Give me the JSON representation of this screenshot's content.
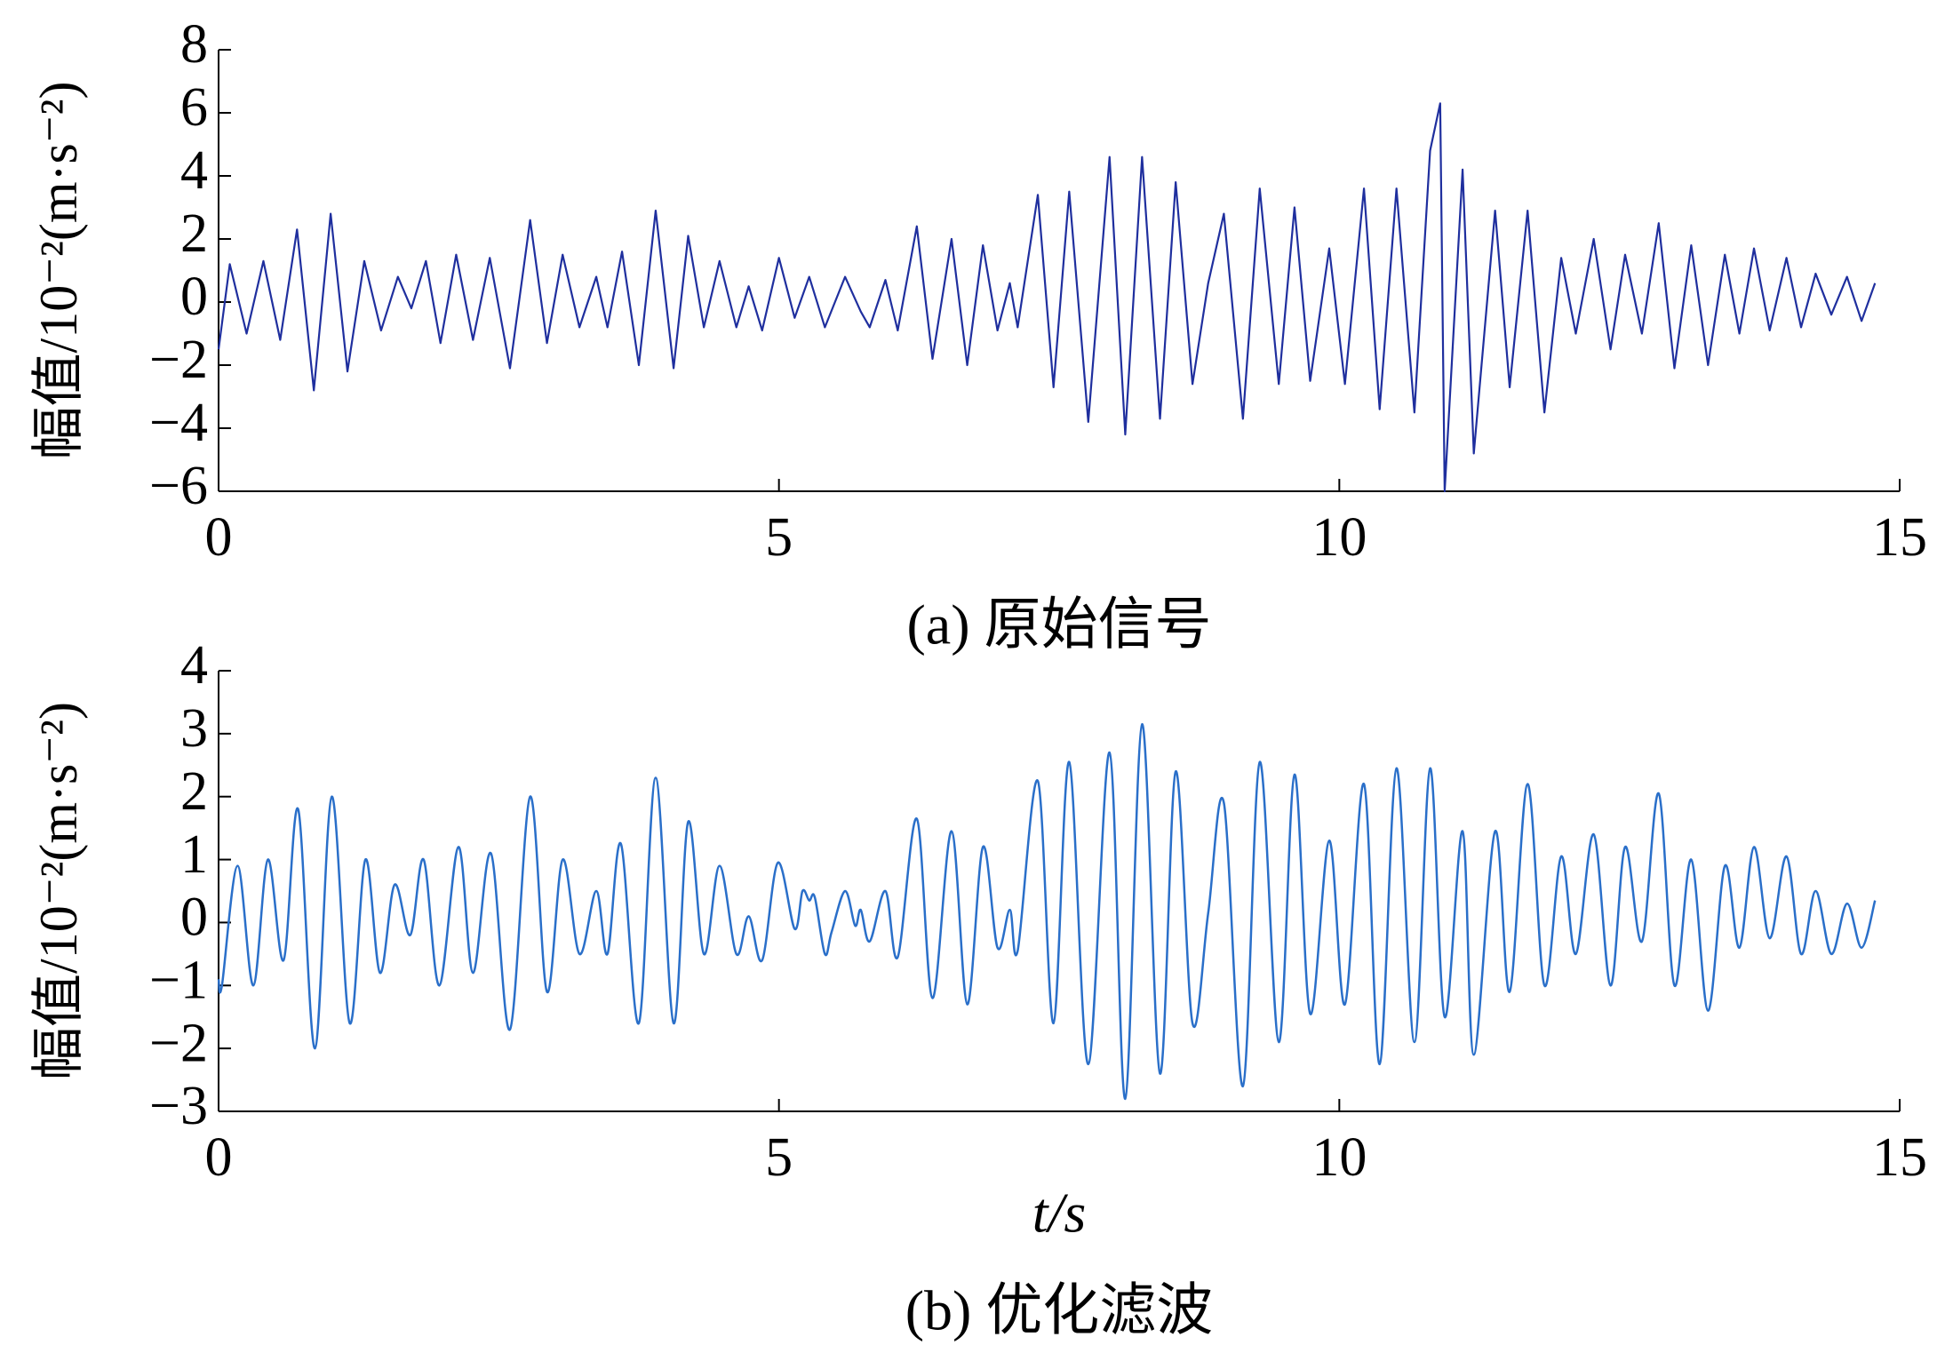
{
  "chart_data": [
    {
      "type": "line",
      "caption": "(a) 原始信号",
      "y_label": "幅值/10⁻²(m·s⁻²)",
      "color": "#1f2f9e",
      "xlim": [
        0,
        15
      ],
      "xticks": [
        0,
        5,
        10,
        15
      ],
      "ylim": [
        -6,
        8
      ],
      "yticks": [
        {
          "value": -6,
          "label": "−6"
        },
        {
          "value": -4,
          "label": "−4"
        },
        {
          "value": -2,
          "label": "−2"
        },
        0,
        2,
        4,
        6,
        8
      ],
      "x": [
        0,
        0.1,
        0.25,
        0.4,
        0.55,
        0.7,
        0.85,
        1.0,
        1.15,
        1.3,
        1.45,
        1.6,
        1.72,
        1.85,
        1.98,
        2.12,
        2.27,
        2.42,
        2.6,
        2.78,
        2.93,
        3.07,
        3.22,
        3.37,
        3.47,
        3.6,
        3.75,
        3.9,
        4.06,
        4.19,
        4.33,
        4.47,
        4.62,
        4.73,
        4.85,
        5.0,
        5.14,
        5.27,
        5.41,
        5.59,
        5.73,
        5.81,
        5.95,
        6.06,
        6.23,
        6.37,
        6.54,
        6.68,
        6.82,
        6.95,
        7.06,
        7.13,
        7.31,
        7.45,
        7.59,
        7.76,
        7.95,
        8.09,
        8.24,
        8.4,
        8.54,
        8.69,
        8.83,
        8.97,
        9.14,
        9.29,
        9.46,
        9.6,
        9.74,
        9.91,
        10.05,
        10.22,
        10.36,
        10.51,
        10.67,
        10.81,
        10.9,
        10.94,
        11.1,
        11.2,
        11.39,
        11.52,
        11.68,
        11.83,
        11.98,
        12.11,
        12.27,
        12.42,
        12.55,
        12.7,
        12.85,
        12.99,
        13.14,
        13.29,
        13.44,
        13.57,
        13.7,
        13.84,
        13.99,
        14.12,
        14.25,
        14.39,
        14.53,
        14.66,
        14.78
      ],
      "values": [
        -1.5,
        1.2,
        -1.0,
        1.3,
        -1.2,
        2.3,
        -2.8,
        2.8,
        -2.2,
        1.3,
        -0.9,
        0.8,
        -0.2,
        1.3,
        -1.3,
        1.5,
        -1.2,
        1.4,
        -2.1,
        2.6,
        -1.3,
        1.5,
        -0.8,
        0.8,
        -0.8,
        1.6,
        -2.0,
        2.9,
        -2.1,
        2.1,
        -0.8,
        1.3,
        -0.8,
        0.5,
        -0.9,
        1.4,
        -0.5,
        0.8,
        -0.8,
        0.8,
        -0.3,
        -0.8,
        0.7,
        -0.9,
        2.4,
        -1.8,
        2.0,
        -2.0,
        1.8,
        -0.9,
        0.6,
        -0.8,
        3.4,
        -2.7,
        3.5,
        -3.8,
        4.6,
        -4.2,
        4.6,
        -3.7,
        3.8,
        -2.6,
        0.6,
        2.8,
        -3.7,
        3.6,
        -2.6,
        3.0,
        -2.5,
        1.7,
        -2.6,
        3.6,
        -3.4,
        3.6,
        -3.5,
        4.8,
        6.3,
        -6.0,
        4.2,
        -4.8,
        2.9,
        -2.7,
        2.9,
        -3.5,
        1.4,
        -1.0,
        2.0,
        -1.5,
        1.5,
        -1.0,
        2.5,
        -2.1,
        1.8,
        -2.0,
        1.5,
        -1.0,
        1.7,
        -0.9,
        1.4,
        -0.8,
        0.9,
        -0.4,
        0.8,
        -0.6,
        0.6
      ]
    },
    {
      "type": "line",
      "smooth": true,
      "caption": "(b) 优化滤波",
      "y_label": "幅值/10⁻²(m·s⁻²)",
      "x_label": "t/s",
      "color": "#2a6fc9",
      "xlim": [
        0,
        15
      ],
      "xticks": [
        0,
        5,
        10,
        15
      ],
      "ylim": [
        -3,
        4
      ],
      "yticks": [
        {
          "value": -3,
          "label": "−3"
        },
        {
          "value": -2,
          "label": "−2"
        },
        {
          "value": -1,
          "label": "−1"
        },
        0,
        1,
        2,
        3,
        4
      ],
      "x": [
        0,
        0.03,
        0.17,
        0.31,
        0.44,
        0.58,
        0.71,
        0.86,
        1.01,
        1.17,
        1.31,
        1.44,
        1.57,
        1.71,
        1.83,
        1.97,
        2.14,
        2.27,
        2.43,
        2.6,
        2.78,
        2.93,
        3.07,
        3.22,
        3.37,
        3.47,
        3.59,
        3.75,
        3.9,
        4.06,
        4.19,
        4.33,
        4.47,
        4.62,
        4.73,
        4.85,
        4.99,
        5.14,
        5.21,
        5.27,
        5.32,
        5.41,
        5.47,
        5.59,
        5.68,
        5.73,
        5.81,
        5.95,
        6.06,
        6.23,
        6.37,
        6.54,
        6.68,
        6.82,
        6.95,
        7.06,
        7.13,
        7.31,
        7.45,
        7.59,
        7.76,
        7.95,
        8.09,
        8.24,
        8.4,
        8.54,
        8.69,
        8.83,
        8.97,
        9.14,
        9.29,
        9.46,
        9.6,
        9.74,
        9.91,
        10.05,
        10.22,
        10.36,
        10.51,
        10.67,
        10.81,
        10.94,
        11.1,
        11.2,
        11.39,
        11.52,
        11.68,
        11.83,
        11.98,
        12.11,
        12.27,
        12.42,
        12.55,
        12.7,
        12.85,
        12.99,
        13.14,
        13.29,
        13.44,
        13.57,
        13.7,
        13.84,
        13.99,
        14.12,
        14.25,
        14.39,
        14.53,
        14.66,
        14.78
      ],
      "values": [
        -0.9,
        -1.0,
        0.9,
        -1.0,
        1.0,
        -0.6,
        1.8,
        -2.0,
        2.0,
        -1.6,
        1.0,
        -0.8,
        0.6,
        -0.2,
        1.0,
        -1.0,
        1.2,
        -0.8,
        1.1,
        -1.7,
        2.0,
        -1.1,
        1.0,
        -0.5,
        0.5,
        -0.5,
        1.25,
        -1.6,
        2.3,
        -1.6,
        1.6,
        -0.5,
        0.9,
        -0.5,
        0.1,
        -0.6,
        0.95,
        -0.1,
        0.5,
        0.35,
        0.4,
        -0.5,
        -0.15,
        0.5,
        -0.05,
        0.2,
        -0.3,
        0.5,
        -0.55,
        1.65,
        -1.2,
        1.45,
        -1.3,
        1.2,
        -0.4,
        0.2,
        -0.45,
        2.25,
        -1.6,
        2.55,
        -2.25,
        2.7,
        -2.8,
        3.15,
        -2.4,
        2.4,
        -1.6,
        0.15,
        1.9,
        -2.6,
        2.55,
        -1.9,
        2.35,
        -1.45,
        1.3,
        -1.3,
        2.2,
        -2.25,
        2.45,
        -1.9,
        2.45,
        -1.5,
        1.45,
        -2.1,
        1.45,
        -1.1,
        2.2,
        -1.0,
        1.05,
        -0.5,
        1.4,
        -1.0,
        1.2,
        -0.3,
        2.05,
        -1.0,
        1.0,
        -1.4,
        0.9,
        -0.4,
        1.2,
        -0.25,
        1.05,
        -0.5,
        0.5,
        -0.5,
        0.3,
        -0.4,
        0.35
      ]
    }
  ]
}
